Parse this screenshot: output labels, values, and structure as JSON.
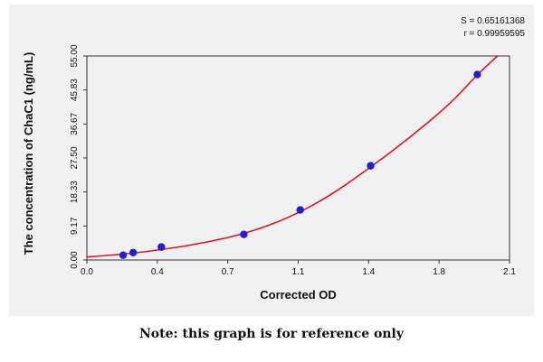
{
  "chart_data": {
    "type": "scatter",
    "xlabel": "Corrected OD",
    "ylabel": "The concentration of ChaC1 (ng/mL)",
    "xlim": [
      0.0,
      2.1
    ],
    "ylim": [
      0.0,
      55.0
    ],
    "x_ticks": [
      "0.0",
      "0.4",
      "0.7",
      "1.1",
      "1.4",
      "1.8",
      "2.1"
    ],
    "y_ticks": [
      "0.00",
      "9.17",
      "18.33",
      "27.50",
      "36.67",
      "45.83",
      "55.00"
    ],
    "grid": false,
    "stats": [
      "S = 0.65161368",
      "r = 0.99959595"
    ],
    "points": [
      {
        "x": 0.18,
        "y": 1.3
      },
      {
        "x": 0.23,
        "y": 2.0
      },
      {
        "x": 0.37,
        "y": 3.5
      },
      {
        "x": 0.78,
        "y": 6.9
      },
      {
        "x": 1.06,
        "y": 13.5
      },
      {
        "x": 1.41,
        "y": 25.4
      },
      {
        "x": 1.94,
        "y": 50.0
      }
    ],
    "curve": [
      {
        "x": 0.0,
        "y": 0.8
      },
      {
        "x": 0.2,
        "y": 1.6
      },
      {
        "x": 0.4,
        "y": 3.0
      },
      {
        "x": 0.6,
        "y": 4.8
      },
      {
        "x": 0.8,
        "y": 7.3
      },
      {
        "x": 1.0,
        "y": 11.3
      },
      {
        "x": 1.2,
        "y": 17.0
      },
      {
        "x": 1.4,
        "y": 24.6
      },
      {
        "x": 1.6,
        "y": 32.8
      },
      {
        "x": 1.8,
        "y": 41.8
      },
      {
        "x": 1.94,
        "y": 50.0
      },
      {
        "x": 2.04,
        "y": 55.0
      }
    ],
    "colors": {
      "points": "#1f1fd6",
      "curve": "#e0141e"
    }
  },
  "note": "Note: this graph is for reference only"
}
